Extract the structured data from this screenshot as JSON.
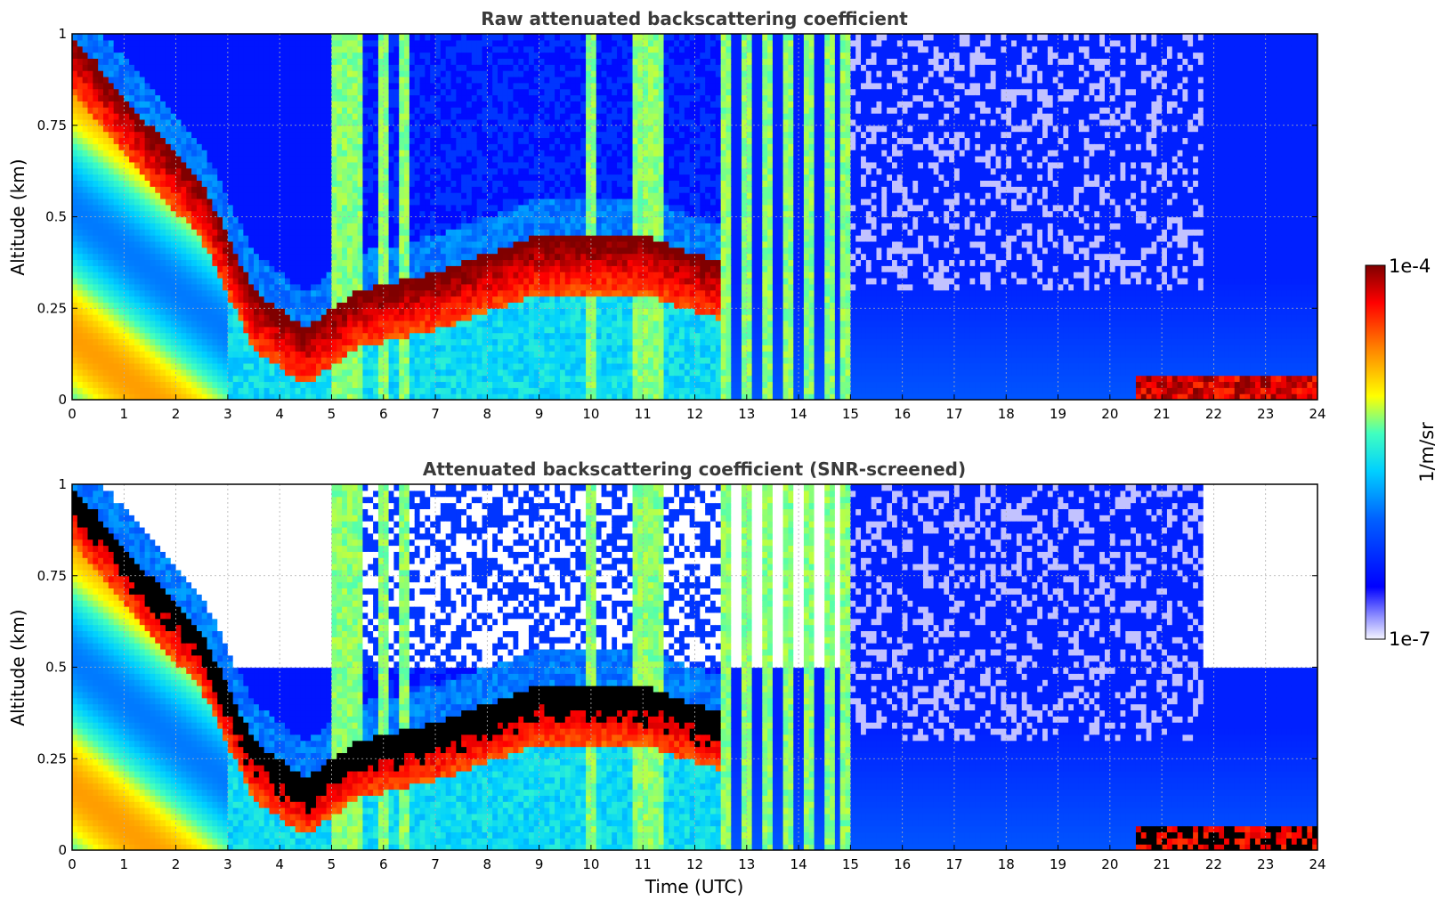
{
  "chart_data": [
    {
      "type": "heatmap",
      "title": "Raw attenuated backscattering coefficient",
      "xlabel": "",
      "ylabel": "Altitude (km)",
      "xlim": [
        0,
        24
      ],
      "ylim": [
        0,
        1
      ],
      "xticks": [
        "0",
        "1",
        "2",
        "3",
        "4",
        "5",
        "6",
        "7",
        "8",
        "9",
        "10",
        "11",
        "12",
        "13",
        "14",
        "15",
        "16",
        "17",
        "18",
        "19",
        "20",
        "21",
        "22",
        "23",
        "24"
      ],
      "yticks": [
        "0",
        "0.25",
        "0.5",
        "0.75",
        "1"
      ],
      "grid": true,
      "screened": false,
      "features": {
        "cloud_layer_top_km": [
          [
            0,
            1.0
          ],
          [
            1.5,
            0.75
          ],
          [
            2.5,
            0.6
          ],
          [
            3.5,
            0.3
          ],
          [
            4.5,
            0.2
          ],
          [
            5.5,
            0.3
          ],
          [
            7,
            0.35
          ],
          [
            8,
            0.4
          ],
          [
            9,
            0.45
          ],
          [
            10,
            0.45
          ],
          [
            11,
            0.45
          ],
          [
            12,
            0.4
          ],
          [
            12.5,
            0.38
          ]
        ],
        "precipitation_columns_h": [
          5.1,
          5.3,
          5.5,
          6.0,
          6.4,
          10.0,
          10.9,
          11.1,
          11.3,
          12.6,
          13.0,
          13.4,
          13.8,
          14.2,
          14.6,
          14.9
        ],
        "surface_layer_onset_h": 20.5
      }
    },
    {
      "type": "heatmap",
      "title": "Attenuated backscattering coefficient (SNR-screened)",
      "xlabel": "Time (UTC)",
      "ylabel": "Altitude (km)",
      "xlim": [
        0,
        24
      ],
      "ylim": [
        0,
        1
      ],
      "xticks": [
        "0",
        "1",
        "2",
        "3",
        "4",
        "5",
        "6",
        "7",
        "8",
        "9",
        "10",
        "11",
        "12",
        "13",
        "14",
        "15",
        "16",
        "17",
        "18",
        "19",
        "20",
        "21",
        "22",
        "23",
        "24"
      ],
      "yticks": [
        "0",
        "0.25",
        "0.5",
        "0.75",
        "1"
      ],
      "grid": true,
      "screened": true,
      "features": {
        "cloud_layer_top_km": [
          [
            0,
            1.0
          ],
          [
            1.5,
            0.75
          ],
          [
            2.5,
            0.6
          ],
          [
            3.5,
            0.3
          ],
          [
            4.5,
            0.2
          ],
          [
            5.5,
            0.3
          ],
          [
            7,
            0.35
          ],
          [
            8,
            0.4
          ],
          [
            9,
            0.45
          ],
          [
            10,
            0.45
          ],
          [
            11,
            0.45
          ],
          [
            12,
            0.4
          ],
          [
            12.5,
            0.38
          ]
        ],
        "precipitation_columns_h": [
          5.1,
          5.3,
          5.5,
          6.0,
          6.4,
          10.0,
          10.9,
          11.1,
          11.3,
          12.6,
          13.0,
          13.4,
          13.8,
          14.2,
          14.6,
          14.9
        ],
        "surface_layer_onset_h": 20.5
      }
    }
  ],
  "colorbar": {
    "label": "1/m/sr",
    "max_label": "1e-4",
    "min_label": "1e-7",
    "colormap": "jet",
    "colors": [
      "#ffffff",
      "#0000ff",
      "#00bfff",
      "#00ffff",
      "#ffff00",
      "#ff7f00",
      "#ff0000",
      "#800000"
    ]
  }
}
